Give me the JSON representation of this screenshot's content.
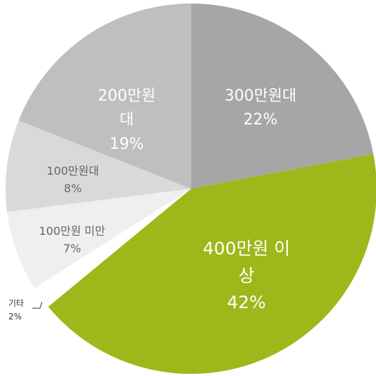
{
  "chart_data": {
    "type": "pie",
    "categories": [
      "300만원대",
      "400만원 이상",
      "기타",
      "100만원 미만",
      "100만원대",
      "200만원대"
    ],
    "values": [
      22,
      42,
      2,
      7,
      8,
      19
    ],
    "value_labels": [
      "22%",
      "42%",
      "2%",
      "7%",
      "8%",
      "19%"
    ],
    "colors": [
      "#a6a6a6",
      "#9db81a",
      "#ffffff",
      "#efefef",
      "#d9d9d9",
      "#bfbfbf"
    ]
  }
}
